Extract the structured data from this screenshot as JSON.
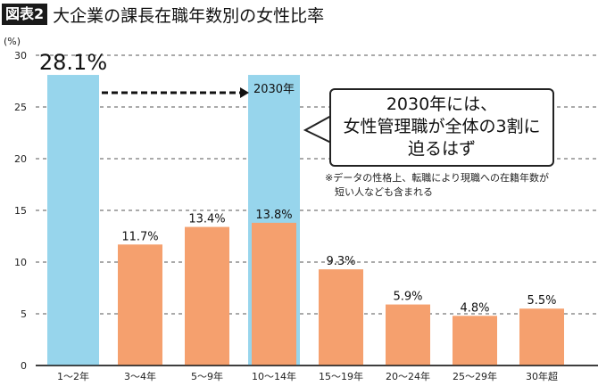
{
  "header": {
    "badge": "図表2",
    "title": "大企業の課長在職年数別の女性比率"
  },
  "chart_data": {
    "type": "bar",
    "title": "大企業の課長在職年数別の女性比率",
    "ylabel": "(%)",
    "ylim": [
      0,
      30
    ],
    "yticks": [
      0,
      5,
      10,
      15,
      20,
      25,
      30
    ],
    "grid": true,
    "categories": [
      "1～2年",
      "3～4年",
      "5～9年",
      "10～14年",
      "15～19年",
      "20～24年",
      "25～29年",
      "30年超"
    ],
    "values": [
      28.1,
      11.7,
      13.4,
      13.8,
      9.3,
      5.9,
      4.8,
      5.5
    ],
    "value_labels": [
      "28.1%",
      "11.7%",
      "13.4%",
      "13.8%",
      "9.3%",
      "5.9%",
      "4.8%",
      "5.5%"
    ],
    "projection": {
      "category": "10～14年",
      "value": 28.1,
      "label": "2030年"
    },
    "colors": {
      "highlight": "#97d5ec",
      "bar": "#f5a06e",
      "grid": "#555555"
    },
    "callout": {
      "lines": [
        "2030年には、",
        "女性管理職が全体の3割に",
        "迫るはず"
      ]
    },
    "note": [
      "※データの性格上、転職により現職への在籍年数が",
      "短い人なども含まれる"
    ]
  }
}
